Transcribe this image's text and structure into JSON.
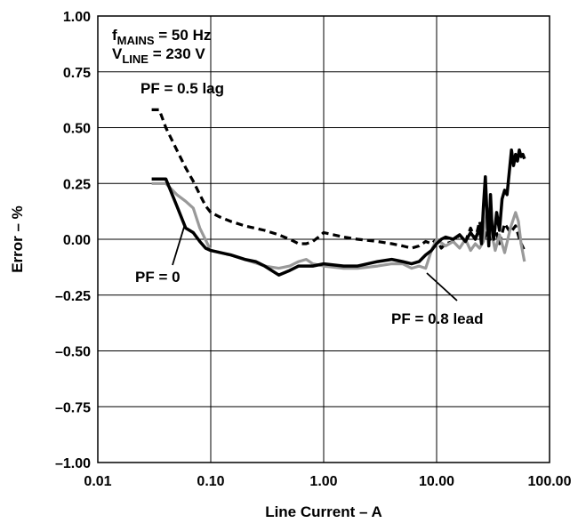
{
  "chart_data": {
    "type": "line",
    "xlabel": "Line Current – A",
    "ylabel": "Error – %",
    "xscale": "log",
    "xlim": [
      0.01,
      100
    ],
    "ylim": [
      -1.0,
      1.0
    ],
    "grid": true,
    "x_tick_labels": [
      "0.01",
      "0.10",
      "1.00",
      "10.00",
      "100.00"
    ],
    "y_tick_labels": [
      "1.00",
      "0.75",
      "0.50",
      "0.25",
      "0.00",
      "–0.25",
      "–0.50",
      "–0.75",
      "–1.00"
    ],
    "conditions": {
      "mains_prefix": "f",
      "mains_sub": "MAINS",
      "mains_value": " = 50 Hz",
      "line_prefix": "V",
      "line_sub": "LINE",
      "line_value": " = 230 V"
    },
    "annotations": {
      "pf05": "PF = 0.5 lag",
      "pf0": "PF = 0",
      "pf08": "PF = 0.8 lead"
    },
    "series": [
      {
        "name": "PF = 0.5 lag",
        "color": "#000000",
        "dash": true,
        "x": [
          0.03,
          0.035,
          0.04,
          0.05,
          0.06,
          0.07,
          0.08,
          0.09,
          0.1,
          0.12,
          0.15,
          0.2,
          0.3,
          0.4,
          0.5,
          0.6,
          0.7,
          0.8,
          0.9,
          1.0,
          1.5,
          2.0,
          3.0,
          4.0,
          5.0,
          6.0,
          7.0,
          8.0,
          9.0,
          10.0,
          11.0,
          12.0,
          14.0,
          16.0,
          18.0,
          20.0,
          22.0,
          24.0,
          26.0,
          28.0,
          30.0,
          33.0,
          36.0,
          40.0,
          45.0,
          50.0,
          55.0,
          60.0
        ],
        "values": [
          0.58,
          0.58,
          0.5,
          0.4,
          0.32,
          0.26,
          0.2,
          0.15,
          0.12,
          0.1,
          0.08,
          0.06,
          0.04,
          0.02,
          0.0,
          -0.02,
          -0.02,
          -0.01,
          0.01,
          0.03,
          0.01,
          0.0,
          -0.01,
          -0.02,
          -0.03,
          -0.04,
          -0.03,
          -0.01,
          -0.02,
          0.0,
          -0.04,
          -0.02,
          -0.01,
          0.02,
          -0.01,
          0.05,
          0.0,
          0.08,
          -0.01,
          0.04,
          0.0,
          0.05,
          -0.02,
          0.07,
          0.03,
          0.06,
          -0.01,
          -0.05
        ]
      },
      {
        "name": "PF = 0",
        "color": "#999999",
        "dash": false,
        "x": [
          0.03,
          0.04,
          0.05,
          0.06,
          0.07,
          0.08,
          0.1,
          0.15,
          0.2,
          0.3,
          0.4,
          0.5,
          0.6,
          0.7,
          0.8,
          1.0,
          1.5,
          2.0,
          3.0,
          4.0,
          5.0,
          6.0,
          7.0,
          8.0,
          9.0,
          10.0,
          12.0,
          14.0,
          16.0,
          18.0,
          20.0,
          22.0,
          24.0,
          26.0,
          28.0,
          30.0,
          33.0,
          36.0,
          40.0,
          45.0,
          50.0,
          53.0,
          56.0,
          60.0
        ],
        "values": [
          0.25,
          0.25,
          0.2,
          0.17,
          0.14,
          0.05,
          -0.05,
          -0.07,
          -0.09,
          -0.12,
          -0.13,
          -0.12,
          -0.1,
          -0.09,
          -0.11,
          -0.12,
          -0.13,
          -0.13,
          -0.12,
          -0.11,
          -0.11,
          -0.13,
          -0.12,
          -0.13,
          -0.05,
          0.0,
          -0.03,
          -0.01,
          -0.04,
          0.0,
          -0.05,
          -0.02,
          -0.04,
          -0.01,
          0.14,
          0.05,
          -0.05,
          0.02,
          -0.06,
          0.05,
          0.12,
          0.08,
          -0.02,
          -0.1
        ]
      },
      {
        "name": "PF = 0.8 lead",
        "color": "#000000",
        "dash": false,
        "x": [
          0.03,
          0.04,
          0.05,
          0.06,
          0.07,
          0.08,
          0.09,
          0.1,
          0.15,
          0.2,
          0.25,
          0.3,
          0.4,
          0.5,
          0.6,
          0.8,
          1.0,
          1.5,
          2.0,
          3.0,
          4.0,
          5.0,
          6.0,
          7.0,
          8.0,
          9.0,
          10.0,
          11.0,
          12.0,
          14.0,
          16.0,
          18.0,
          20.0,
          22.0,
          24.0,
          25.0,
          26.0,
          27.0,
          28.0,
          29.0,
          30.0,
          31.0,
          32.0,
          34.0,
          36.0,
          38.0,
          40.0,
          42.0,
          44.0,
          46.0,
          48.0,
          50.0,
          52.0,
          54.0,
          56.0,
          58.0,
          60.0
        ],
        "values": [
          0.27,
          0.27,
          0.15,
          0.05,
          0.03,
          -0.01,
          -0.04,
          -0.05,
          -0.07,
          -0.09,
          -0.1,
          -0.12,
          -0.16,
          -0.14,
          -0.12,
          -0.12,
          -0.11,
          -0.12,
          -0.12,
          -0.1,
          -0.09,
          -0.1,
          -0.11,
          -0.1,
          -0.07,
          -0.05,
          -0.02,
          0.0,
          0.01,
          0.0,
          0.02,
          -0.01,
          0.03,
          0.0,
          0.05,
          -0.02,
          0.15,
          0.28,
          0.1,
          -0.03,
          0.2,
          0.05,
          0.0,
          0.12,
          0.04,
          0.18,
          0.22,
          0.2,
          0.3,
          0.4,
          0.33,
          0.38,
          0.35,
          0.4,
          0.37,
          0.38,
          0.36
        ]
      }
    ]
  }
}
